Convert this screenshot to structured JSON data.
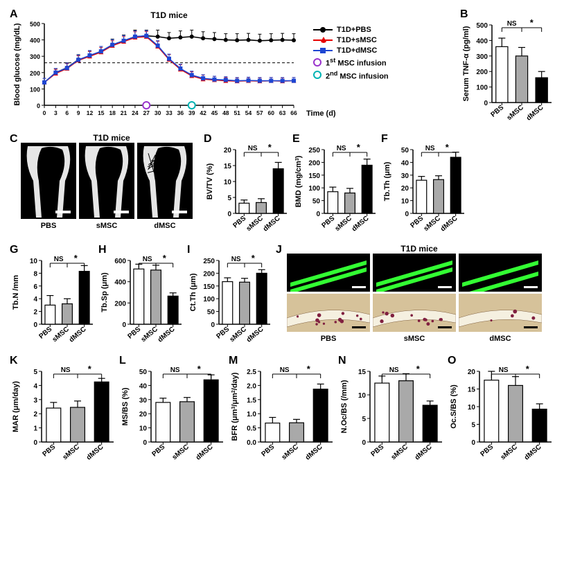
{
  "colors": {
    "black": "#000000",
    "red": "#e60000",
    "blue": "#1e46d2",
    "gray_bar": "#a9a9a9",
    "white": "#ffffff",
    "green": "#33ff33",
    "histology": "#d6c29a",
    "purple": "#9933cc",
    "teal": "#00b3b3",
    "axis": "#000000"
  },
  "panelA": {
    "label": "A",
    "title": "T1D mice",
    "xaxis_label": "Time (d)",
    "yaxis_label": "Blood glucose (mg/dL)",
    "ylim": [
      0,
      500
    ],
    "ytick_step": 100,
    "x_values": [
      0,
      3,
      6,
      9,
      12,
      15,
      18,
      21,
      24,
      27,
      30,
      33,
      36,
      39,
      42,
      45,
      48,
      51,
      54,
      57,
      60,
      63,
      66
    ],
    "dashed_y": 260,
    "infusion1_x": 27,
    "infusion2_x": 39,
    "series": [
      {
        "name": "T1D+PBS",
        "color": "#000000",
        "marker": "circle",
        "y": [
          140,
          200,
          230,
          280,
          300,
          330,
          370,
          395,
          420,
          425,
          420,
          410,
          415,
          420,
          410,
          405,
          400,
          398,
          400,
          395,
          398,
          400,
          398
        ],
        "err": [
          25,
          25,
          30,
          30,
          30,
          30,
          35,
          35,
          40,
          35,
          40,
          35,
          40,
          40,
          40,
          40,
          38,
          40,
          40,
          40,
          40,
          40,
          40
        ]
      },
      {
        "name": "T1D+sMSC",
        "color": "#e60000",
        "marker": "triangle",
        "y": [
          140,
          195,
          225,
          275,
          300,
          325,
          365,
          390,
          415,
          420,
          360,
          280,
          220,
          180,
          160,
          155,
          150,
          148,
          150,
          148,
          150,
          148,
          150
        ],
        "err": [
          25,
          25,
          30,
          28,
          30,
          28,
          30,
          30,
          35,
          32,
          32,
          30,
          28,
          25,
          25,
          22,
          20,
          20,
          20,
          20,
          20,
          20,
          20
        ]
      },
      {
        "name": "T1D+dMSC",
        "color": "#1e46d2",
        "marker": "square",
        "y": [
          140,
          200,
          228,
          278,
          305,
          330,
          370,
          395,
          420,
          425,
          365,
          285,
          225,
          185,
          165,
          158,
          155,
          150,
          152,
          150,
          150,
          150,
          150
        ],
        "err": [
          25,
          25,
          30,
          30,
          30,
          30,
          32,
          32,
          35,
          32,
          30,
          28,
          26,
          24,
          22,
          20,
          20,
          20,
          20,
          20,
          20,
          20,
          20
        ]
      }
    ],
    "legend": {
      "items": [
        {
          "label": "T1D+PBS",
          "color": "#000000",
          "shape": "circle"
        },
        {
          "label": "T1D+sMSC",
          "color": "#e60000",
          "shape": "triangle"
        },
        {
          "label": "T1D+dMSC",
          "color": "#1e46d2",
          "shape": "square"
        }
      ],
      "infusion1": {
        "label": "1",
        "sup": "st",
        "tail": " MSC infusion",
        "color": "#9933cc"
      },
      "infusion2": {
        "label": "2",
        "sup": "nd",
        "tail": " MSC infusion",
        "color": "#00b3b3"
      }
    }
  },
  "panelB": {
    "label": "B",
    "y_label": "Serum TNF-α (pg/ml)",
    "ylim": [
      0,
      500
    ],
    "ytick_step": 100,
    "cats": [
      "PBS",
      "sMSC",
      "dMSC"
    ],
    "vals": [
      360,
      300,
      160
    ],
    "errs": [
      55,
      55,
      40
    ],
    "sig": [
      "NS",
      "*"
    ]
  },
  "panelC": {
    "label": "C",
    "title": "T1D mice",
    "cats": [
      "PBS",
      "sMSC",
      "dMSC"
    ]
  },
  "panelD": {
    "label": "D",
    "y_label": "BV/TV (%)",
    "ylim": [
      0,
      20
    ],
    "ytick_step": 5,
    "cats": [
      "PBS",
      "sMSC",
      "dMSC"
    ],
    "vals": [
      3.2,
      3.4,
      14
    ],
    "errs": [
      1,
      1.2,
      2
    ],
    "sig": [
      "NS",
      "*"
    ]
  },
  "panelE": {
    "label": "E",
    "y_label": "BMD (mg/cm",
    "sup": "3",
    "tail": ")",
    "ylim": [
      0,
      250
    ],
    "ytick_step": 50,
    "cats": [
      "PBS",
      "sMSC",
      "dMSC"
    ],
    "vals": [
      85,
      80,
      189
    ],
    "errs": [
      18,
      18,
      24
    ],
    "sig": [
      "NS",
      "*"
    ]
  },
  "panelF": {
    "label": "F",
    "y_label": "Tb.Th (μm)",
    "ylim": [
      0,
      50
    ],
    "ytick_step": 10,
    "cats": [
      "PBS",
      "sMSC",
      "dMSC"
    ],
    "vals": [
      26,
      26.5,
      44
    ],
    "errs": [
      3,
      3,
      4
    ],
    "sig": [
      "NS",
      "*"
    ]
  },
  "panelG": {
    "label": "G",
    "y_label": "Tb.N /mm",
    "ylim": [
      0,
      10
    ],
    "ytick_step": 2,
    "cats": [
      "PBS",
      "sMSC",
      "dMSC"
    ],
    "vals": [
      3,
      3.2,
      8.3
    ],
    "errs": [
      1.5,
      0.8,
      0.9
    ],
    "sig": [
      "NS",
      "*"
    ]
  },
  "panelH": {
    "label": "H",
    "y_label": "Tb.Sp (μm)",
    "ylim": [
      0,
      600
    ],
    "ytick_step": 200,
    "cats": [
      "PBS",
      "sMSC",
      "dMSC"
    ],
    "vals": [
      520,
      510,
      265
    ],
    "errs": [
      45,
      45,
      30
    ],
    "sig": [
      "NS",
      "*"
    ]
  },
  "panelI": {
    "label": "I",
    "y_label": "Ct.Th (μm)",
    "ylim": [
      0,
      250
    ],
    "ytick_step": 50,
    "cats": [
      "PBS",
      "sMSC",
      "dMSC"
    ],
    "vals": [
      167,
      165,
      200
    ],
    "errs": [
      15,
      15,
      14
    ],
    "sig": [
      "NS",
      "*"
    ]
  },
  "panelJ": {
    "label": "J",
    "title": "T1D mice",
    "cats": [
      "PBS",
      "sMSC",
      "dMSC"
    ]
  },
  "panelK": {
    "label": "K",
    "y_label": "MAR (μm/day)",
    "ylim": [
      0,
      5
    ],
    "ytick_step": 1,
    "cats": [
      "PBS",
      "sMSC",
      "dMSC"
    ],
    "vals": [
      2.4,
      2.45,
      4.25
    ],
    "errs": [
      0.4,
      0.45,
      0.25
    ],
    "sig": [
      "NS",
      "*"
    ]
  },
  "panelL": {
    "label": "L",
    "y_label": "MS/BS (%)",
    "ylim": [
      0,
      50
    ],
    "ytick_step": 10,
    "cats": [
      "PBS",
      "sMSC",
      "dMSC"
    ],
    "vals": [
      28,
      28.5,
      44
    ],
    "errs": [
      3,
      3,
      3.5
    ],
    "sig": [
      "NS",
      "*"
    ]
  },
  "panelM": {
    "label": "M",
    "y_label_pre": "BFR (μm",
    "sup1": "3",
    "mid": "/μm",
    "sup2": "2",
    "tail": "/day)",
    "ylim": [
      0,
      2.5
    ],
    "ytick_step": 0.5,
    "cats": [
      "PBS",
      "sMSC",
      "dMSC"
    ],
    "vals": [
      0.67,
      0.68,
      1.87
    ],
    "errs": [
      0.2,
      0.12,
      0.18
    ],
    "sig": [
      "NS",
      "*"
    ]
  },
  "panelN": {
    "label": "N",
    "y_label": "N.Oc/BS (/mm)",
    "ylim": [
      0,
      15
    ],
    "ytick_step": 5,
    "cats": [
      "PBS",
      "sMSC",
      "dMSC"
    ],
    "vals": [
      12.5,
      13,
      7.8
    ],
    "errs": [
      1.5,
      1.5,
      0.9
    ],
    "sig": [
      "NS",
      "*"
    ]
  },
  "panelO": {
    "label": "O",
    "y_label": "Oc.S/BS (%)",
    "ylim": [
      0,
      20
    ],
    "ytick_step": 5,
    "cats": [
      "PBS",
      "sMSC",
      "dMSC"
    ],
    "vals": [
      17.5,
      16,
      9.3
    ],
    "errs": [
      2.5,
      2.5,
      1.5
    ],
    "sig": [
      "NS",
      "*"
    ]
  }
}
